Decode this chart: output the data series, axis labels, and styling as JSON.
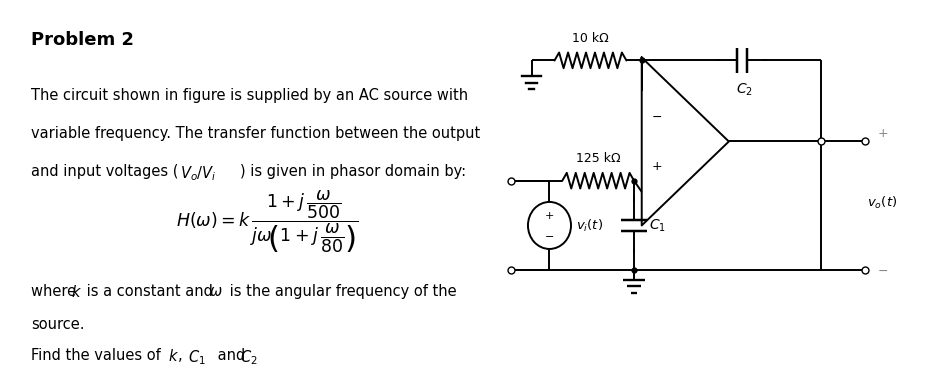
{
  "title": "Problem 2",
  "line1": "The circuit shown in figure is supplied by an AC source with",
  "line2": "variable frequency. The transfer function between the output",
  "line3a": "and input voltages (",
  "line3b": "V_o/V_i",
  "line3c": ") is given in phasor domain by:",
  "where1": "where ",
  "where_k": "k",
  "where2": " is a constant and ",
  "where_omega": "ω",
  "where3": " is the angular frequency of the",
  "source": "source.",
  "find1": "Find the values of ",
  "find_k": "k",
  "find2": ", ",
  "find_C1": "C_1",
  "find3": " and ",
  "find_C2": "C_2",
  "R1_label": "10 kΩ",
  "R2_label": "125 kΩ",
  "bg_color": "#ffffff",
  "cc": "#000000",
  "gray": "#888888",
  "fs_title": 13,
  "fs_body": 10.5,
  "fs_circuit": 9,
  "divider": 0.505
}
